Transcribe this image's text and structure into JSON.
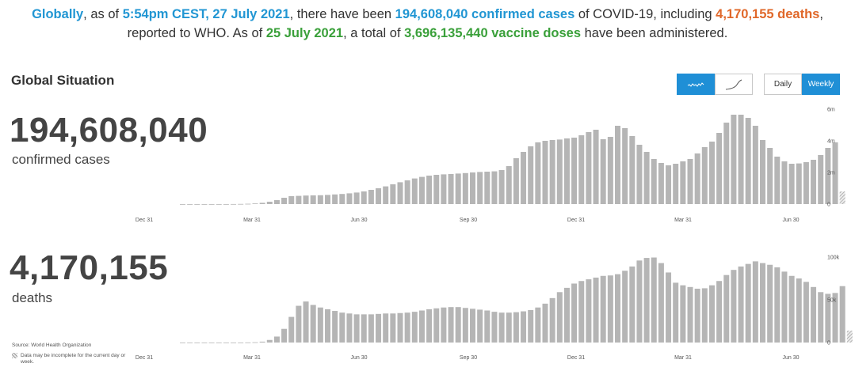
{
  "headline": {
    "globally": "Globally",
    "t1": ", as of ",
    "timestamp": "5:54pm CEST, 27 July 2021",
    "t2": ", there have been ",
    "cases": "194,608,040 confirmed cases",
    "t3": " of COVID-19, including ",
    "deaths": "4,170,155 deaths",
    "t4": ",",
    "t5": "reported to WHO. As of ",
    "vax_date": "25 July 2021",
    "t6": ", a total of ",
    "vax_doses": "3,696,135,440 vaccine doses",
    "t7": " have been administered."
  },
  "section_title": "Global Situation",
  "chart_type_toggle": {
    "daily_icon": "sparkline-icon",
    "cumulative_icon": "curve-icon",
    "active": "daily"
  },
  "period_toggle": {
    "daily_label": "Daily",
    "weekly_label": "Weekly",
    "active": "weekly"
  },
  "cases_panel": {
    "number": "194,608,040",
    "label": "confirmed cases"
  },
  "deaths_panel": {
    "number": "4,170,155",
    "label": "deaths"
  },
  "source_text": "Source: World Health Organization",
  "note_text": "Data may be incomplete for the current day or week.",
  "colors": {
    "bar": "#b5b5b5",
    "accent": "#1f8fd6",
    "hatch": "#999999"
  },
  "chart_data": [
    {
      "type": "bar",
      "title": "confirmed cases",
      "x_ticks": [
        "Dec 31",
        "Mar 31",
        "Jun 30",
        "Sep 30",
        "Dec 31",
        "Mar 31",
        "Jun 30"
      ],
      "y_ticks": [
        "0",
        "2m",
        "4m",
        "6m"
      ],
      "ylim": [
        0,
        6000000
      ],
      "last_bar_incomplete": true,
      "values": [
        0,
        0,
        0,
        0,
        0,
        1000,
        2000,
        5000,
        10000,
        20000,
        40000,
        80000,
        150000,
        250000,
        400000,
        500000,
        520000,
        540000,
        550000,
        560000,
        580000,
        610000,
        640000,
        680000,
        730000,
        800000,
        900000,
        1000000,
        1120000,
        1250000,
        1380000,
        1500000,
        1620000,
        1720000,
        1800000,
        1850000,
        1880000,
        1900000,
        1930000,
        1960000,
        2000000,
        2030000,
        2050000,
        2070000,
        2150000,
        2400000,
        2900000,
        3300000,
        3650000,
        3900000,
        4000000,
        4050000,
        4080000,
        4150000,
        4200000,
        4350000,
        4550000,
        4700000,
        4100000,
        4250000,
        4950000,
        4800000,
        4300000,
        3750000,
        3300000,
        2850000,
        2600000,
        2450000,
        2550000,
        2700000,
        2850000,
        3200000,
        3600000,
        3950000,
        4500000,
        5150000,
        5650000,
        5650000,
        5450000,
        4950000,
        4050000,
        3550000,
        3000000,
        2700000,
        2550000,
        2570000,
        2650000,
        2800000,
        3100000,
        3550000,
        3900000,
        800000
      ]
    },
    {
      "type": "bar",
      "title": "deaths",
      "x_ticks": [
        "Dec 31",
        "Mar 31",
        "Jun 30",
        "Sep 30",
        "Dec 31",
        "Mar 31",
        "Jun 30"
      ],
      "y_ticks": [
        "0",
        "50k",
        "100k"
      ],
      "ylim": [
        0,
        100000
      ],
      "last_bar_incomplete": true,
      "values": [
        0,
        0,
        0,
        0,
        0,
        0,
        0,
        0,
        0,
        100,
        300,
        1000,
        3000,
        7000,
        16000,
        30000,
        43000,
        48000,
        44000,
        41000,
        39000,
        37000,
        35000,
        34000,
        33000,
        33000,
        33000,
        33500,
        34000,
        34000,
        34500,
        35000,
        36000,
        37500,
        39000,
        40000,
        41000,
        41500,
        41500,
        40500,
        39500,
        38500,
        37500,
        36000,
        35000,
        35000,
        35500,
        36500,
        38000,
        41000,
        45500,
        52000,
        59000,
        64000,
        69000,
        72000,
        74000,
        76000,
        78000,
        78500,
        80000,
        84000,
        89000,
        96000,
        99000,
        99500,
        93000,
        82000,
        70000,
        67000,
        65000,
        63000,
        63500,
        67000,
        72000,
        79000,
        85000,
        89000,
        92000,
        95000,
        93000,
        91000,
        88000,
        83000,
        78000,
        75000,
        71000,
        65000,
        59000,
        57000,
        58000,
        66000,
        14000
      ]
    }
  ]
}
